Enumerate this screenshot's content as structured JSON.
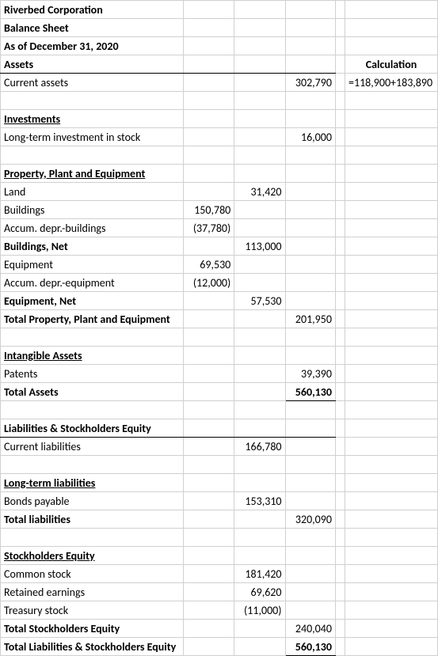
{
  "title": {
    "company": "Riverbed Corporation",
    "report": "Balance Sheet",
    "date": "As of December 31, 2020"
  },
  "headers": {
    "assets": "Assets",
    "calculation": "Calculation"
  },
  "assets": {
    "current_assets": {
      "label": "Current assets",
      "value": "302,790",
      "calc": "=118,900+183,890"
    },
    "investments": {
      "heading": "Investments",
      "longterm": {
        "label": "Long-term investment in stock",
        "value": "16,000"
      }
    },
    "ppe": {
      "heading": "Property, Plant and Equipment",
      "land": {
        "label": "Land",
        "col_c": "31,420"
      },
      "buildings": {
        "label": "Buildings",
        "col_b": "150,780"
      },
      "accum_bldg": {
        "label": "Accum. depr.-buildings",
        "col_b": "(37,780)"
      },
      "buildings_net": {
        "label": "Buildings, Net",
        "col_c": "113,000"
      },
      "equipment": {
        "label": "Equipment",
        "col_b": "69,530"
      },
      "accum_equip": {
        "label": "Accum. depr.-equipment",
        "col_b": "(12,000)"
      },
      "equipment_net": {
        "label": "Equipment, Net",
        "col_c": "57,530"
      },
      "total": {
        "label": "Total Property, Plant and Equipment",
        "value": "201,950"
      }
    },
    "intangible": {
      "heading": "Intangible Assets",
      "patents": {
        "label": "Patents",
        "value": "39,390"
      }
    },
    "total_assets": {
      "label": "Total Assets",
      "value": "560,130"
    }
  },
  "liab": {
    "heading": "Liabilities & Stockholders Equity",
    "current": {
      "label": "Current liabilities",
      "col_c": "166,780"
    },
    "longterm": {
      "heading": "Long-term liabilities",
      "bonds": {
        "label": "Bonds payable",
        "col_c": "153,310"
      }
    },
    "total": {
      "label": "Total liabilities",
      "value": "320,090"
    }
  },
  "equity": {
    "heading": "Stockholders Equity",
    "common": {
      "label": "Common stock",
      "col_c": "181,420"
    },
    "retained": {
      "label": "Retained earnings",
      "col_c": "69,620"
    },
    "treasury": {
      "label": "Treasury stock",
      "col_c": "(11,000)"
    },
    "total": {
      "label": "Total Stockholders Equity",
      "value": "240,040"
    },
    "grand_total": {
      "label": "Total Liabilities & Stockholders Equity",
      "value": "560,130"
    }
  }
}
